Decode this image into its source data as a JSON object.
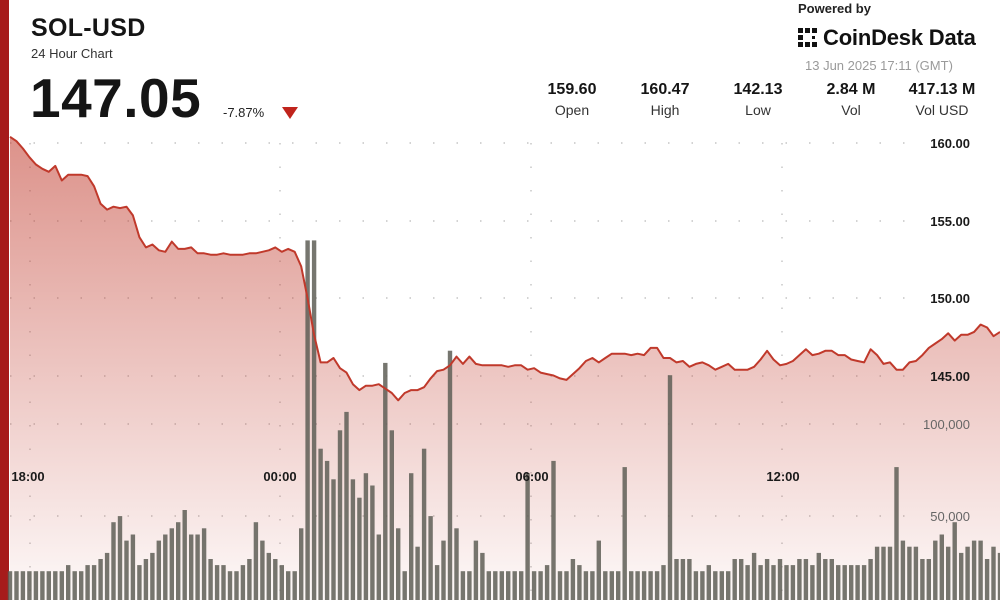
{
  "header": {
    "pair": "SOL-USD",
    "subtitle": "24 Hour Chart",
    "price": "147.05",
    "change": "-7.87%"
  },
  "branding": {
    "powered_by": "Powered by",
    "brand": "CoinDesk Data",
    "timestamp": "13 Jun 2025 17:11 (GMT)"
  },
  "stats": [
    {
      "value": "159.60",
      "label": "Open"
    },
    {
      "value": "160.47",
      "label": "High"
    },
    {
      "value": "142.13",
      "label": "Low"
    },
    {
      "value": "2.84 M",
      "label": "Vol"
    },
    {
      "value": "417.13 M",
      "label": "Vol USD"
    }
  ],
  "colors": {
    "accent": "#a61b1b",
    "line": "#c0392b",
    "down": "#c0241c",
    "volume": "#5e5e56"
  },
  "chart_data": {
    "type": "line",
    "series": [
      {
        "values": [
          160.2,
          159.9,
          159.4,
          158.8,
          158.3,
          158.0,
          157.8,
          158.2,
          157.2,
          157.6,
          157.6,
          157.6,
          157.5,
          156.8,
          155.6,
          155.2,
          155.4,
          155.3,
          155.4,
          154.8,
          153.3,
          152.6,
          152.8,
          152.4,
          152.3,
          153.0,
          152.5,
          152.5,
          152.6,
          152.2,
          152.2,
          152.1,
          152.1,
          152.2,
          152.1,
          152.1,
          152.1,
          152.2,
          152.2,
          152.3,
          152.4,
          152.6,
          152.3,
          152.5,
          152.3,
          151.3,
          149.1,
          146.6,
          144.7,
          144.7,
          145.0,
          144.3,
          144.0,
          143.2,
          142.8,
          143.1,
          143.1,
          143.2,
          142.9,
          142.6,
          142.1,
          142.6,
          142.8,
          142.8,
          143.0,
          143.6,
          144.1,
          144.2,
          144.5,
          145.1,
          144.6,
          145.1,
          144.6,
          144.5,
          144.5,
          144.5,
          144.5,
          144.4,
          144.5,
          144.5,
          144.2,
          144.3,
          144.0,
          143.9,
          143.8,
          143.6,
          143.5,
          143.9,
          144.3,
          144.8,
          145.0,
          144.7,
          145.0,
          145.3,
          145.3,
          145.3,
          145.2,
          145.3,
          145.2,
          145.7,
          145.7,
          145.0,
          145.0,
          144.7,
          144.8,
          144.4,
          144.6,
          144.7,
          144.5,
          144.2,
          144.4,
          144.6,
          144.2,
          144.2,
          144.2,
          144.4,
          144.9,
          145.5,
          144.9,
          144.5,
          144.6,
          144.8,
          145.2,
          145.6,
          145.2,
          145.3,
          145.5,
          145.5,
          145.2,
          145.2,
          144.9,
          144.8,
          144.7,
          145.6,
          145.2,
          144.6,
          144.7,
          144.2,
          144.2,
          144.7,
          144.8,
          145.2,
          145.7,
          146.0,
          146.3,
          146.7,
          146.2,
          146.6,
          146.6,
          146.8,
          147.3,
          147.1,
          146.5,
          146.8
        ]
      }
    ],
    "volume": [
      6,
      6,
      6,
      6,
      6,
      6,
      6,
      6,
      6,
      7,
      6,
      6,
      7,
      7,
      8,
      9,
      14,
      15,
      11,
      12,
      7,
      8,
      9,
      11,
      12,
      13,
      14,
      16,
      12,
      12,
      13,
      8,
      7,
      7,
      6,
      6,
      7,
      8,
      14,
      11,
      9,
      8,
      7,
      6,
      6,
      13,
      60,
      60,
      26,
      24,
      21,
      29,
      32,
      21,
      18,
      22,
      20,
      12,
      40,
      29,
      13,
      6,
      22,
      10,
      26,
      15,
      7,
      11,
      42,
      13,
      6,
      6,
      11,
      9,
      6,
      6,
      6,
      6,
      6,
      6,
      22,
      6,
      6,
      7,
      24,
      6,
      6,
      8,
      7,
      6,
      6,
      11,
      6,
      6,
      6,
      23,
      6,
      6,
      6,
      6,
      6,
      7,
      38,
      8,
      8,
      8,
      6,
      6,
      7,
      6,
      6,
      6,
      8,
      8,
      7,
      9,
      7,
      8,
      7,
      8,
      7,
      7,
      8,
      8,
      7,
      9,
      8,
      8,
      7,
      7,
      7,
      7,
      7,
      8,
      10,
      10,
      10,
      23,
      11,
      10,
      10,
      8,
      8,
      11,
      12,
      10,
      14,
      9,
      10,
      11,
      11,
      8,
      10,
      9,
      8,
      9
    ],
    "x_ticks": [
      "18:00",
      "00:00",
      "06:00",
      "12:00"
    ],
    "y_ticks": [
      "160.00",
      "155.00",
      "150.00",
      "145.00"
    ],
    "volume_ticks": [
      "100,000",
      "50,000"
    ],
    "ylim": [
      140.4,
      160.6
    ],
    "xlim": [
      0,
      155
    ],
    "grid": true,
    "legend": "none"
  }
}
